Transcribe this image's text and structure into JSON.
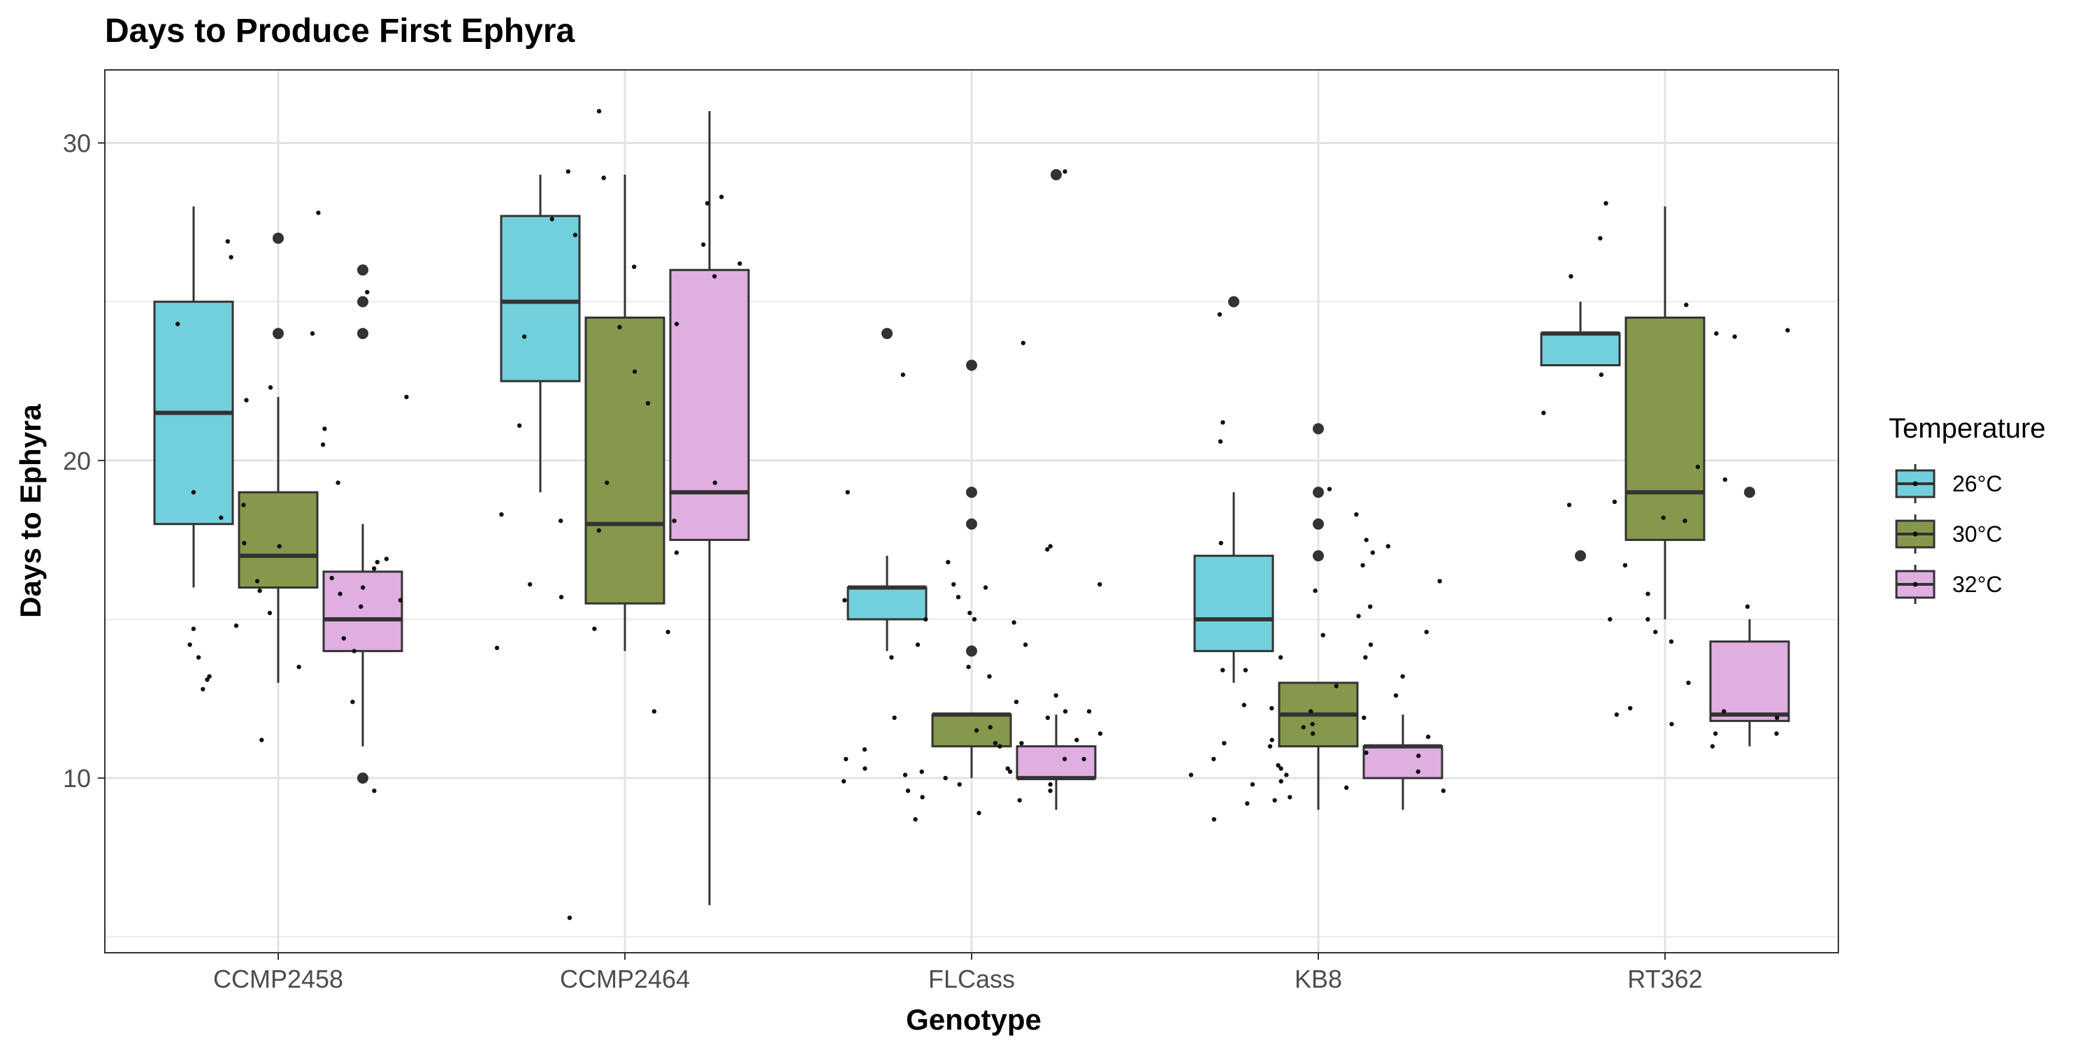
{
  "chart_data": {
    "type": "box",
    "title": "Days to Produce First Ephyra",
    "xlabel": "Genotype",
    "ylabel": "Days to Ephyra",
    "ylim": [
      4.5,
      32.3
    ],
    "y_ticks": [
      10,
      20,
      30
    ],
    "grid": true,
    "categories": [
      "CCMP2458",
      "CCMP2464",
      "FLCass",
      "KB8",
      "RT362"
    ],
    "legend": {
      "title": "Temperature",
      "position": "right"
    },
    "series": [
      {
        "name": "26°C",
        "color": "#72D0DC",
        "boxes": [
          {
            "q1": 18,
            "median": 21.5,
            "q3": 25,
            "whisker_low": 16,
            "whisker_high": 28,
            "outliers": []
          },
          {
            "q1": 22.5,
            "median": 25,
            "q3": 27.7,
            "whisker_low": 19,
            "whisker_high": 29,
            "outliers": []
          },
          {
            "q1": 15,
            "median": 16,
            "q3": 16,
            "whisker_low": 14,
            "whisker_high": 17,
            "outliers": [
              24
            ]
          },
          {
            "q1": 14,
            "median": 15,
            "q3": 17,
            "whisker_low": 13,
            "whisker_high": 19,
            "outliers": [
              25
            ]
          },
          {
            "q1": 23,
            "median": 24,
            "q3": 24,
            "whisker_low": 23,
            "whisker_high": 25,
            "outliers": [
              17
            ]
          }
        ]
      },
      {
        "name": "30°C",
        "color": "#85984C",
        "boxes": [
          {
            "q1": 16,
            "median": 17,
            "q3": 19,
            "whisker_low": 13,
            "whisker_high": 22,
            "outliers": [
              24,
              27
            ]
          },
          {
            "q1": 15.5,
            "median": 18,
            "q3": 24.5,
            "whisker_low": 14,
            "whisker_high": 29,
            "outliers": []
          },
          {
            "q1": 11,
            "median": 12,
            "q3": 12,
            "whisker_low": 10,
            "whisker_high": 12,
            "outliers": [
              14,
              18,
              19,
              23
            ]
          },
          {
            "q1": 11,
            "median": 12,
            "q3": 13,
            "whisker_low": 9,
            "whisker_high": 13,
            "outliers": [
              17,
              18,
              19,
              21
            ]
          },
          {
            "q1": 17.5,
            "median": 19,
            "q3": 24.5,
            "whisker_low": 15,
            "whisker_high": 28,
            "outliers": []
          }
        ]
      },
      {
        "name": "32°C",
        "color": "#E0AEE0",
        "boxes": [
          {
            "q1": 14,
            "median": 15,
            "q3": 16.5,
            "whisker_low": 11,
            "whisker_high": 18,
            "outliers": [
              10,
              24,
              25,
              26
            ]
          },
          {
            "q1": 17.5,
            "median": 19,
            "q3": 26,
            "whisker_low": 6,
            "whisker_high": 31,
            "outliers": []
          },
          {
            "q1": 10,
            "median": 10,
            "q3": 11,
            "whisker_low": 9,
            "whisker_high": 12,
            "outliers": [
              29
            ]
          },
          {
            "q1": 10,
            "median": 11,
            "q3": 11,
            "whisker_low": 9,
            "whisker_high": 12,
            "outliers": []
          },
          {
            "q1": 11.8,
            "median": 12,
            "q3": 14.3,
            "whisker_low": 11,
            "whisker_high": 15,
            "outliers": [
              19
            ]
          }
        ]
      }
    ],
    "jitter_points": [
      [
        0,
        27.8
      ],
      [
        0,
        26.9
      ],
      [
        0,
        24
      ],
      [
        0,
        22
      ],
      [
        0,
        21
      ],
      [
        0,
        20.5
      ],
      [
        0,
        19
      ],
      [
        0,
        16.8
      ],
      [
        0,
        16.3
      ],
      [
        0,
        16
      ],
      [
        0,
        15.8
      ],
      [
        0,
        14.8
      ],
      [
        0,
        14
      ],
      [
        0,
        13.8
      ],
      [
        0,
        13.5
      ],
      [
        0,
        13.2
      ],
      [
        0,
        12.8
      ],
      [
        0,
        12.4
      ],
      [
        0,
        9.6
      ],
      [
        0,
        25.3
      ],
      [
        0,
        24.3
      ],
      [
        0,
        22.3
      ],
      [
        0,
        19.3
      ],
      [
        0,
        18.6
      ],
      [
        0,
        18.2
      ],
      [
        0,
        17.4
      ],
      [
        0,
        16.9
      ],
      [
        0,
        16.6
      ],
      [
        0,
        16.2
      ],
      [
        0,
        15.9
      ],
      [
        0,
        15.4
      ],
      [
        0,
        14.7
      ],
      [
        0,
        14.2
      ],
      [
        0,
        26.4
      ],
      [
        0,
        21.9
      ],
      [
        0,
        17.3
      ],
      [
        0,
        15.6
      ],
      [
        0,
        15.2
      ],
      [
        0,
        14.4
      ],
      [
        0,
        13.1
      ],
      [
        0,
        11.2
      ],
      [
        1,
        28.3
      ],
      [
        1,
        28.1
      ],
      [
        1,
        27.1
      ],
      [
        1,
        26.1
      ],
      [
        1,
        25.8
      ],
      [
        1,
        24.3
      ],
      [
        1,
        23.9
      ],
      [
        1,
        21.8
      ],
      [
        1,
        21.1
      ],
      [
        1,
        18.1
      ],
      [
        1,
        17.8
      ],
      [
        1,
        17.1
      ],
      [
        1,
        15.7
      ],
      [
        1,
        14.7
      ],
      [
        1,
        31
      ],
      [
        1,
        28.9
      ],
      [
        1,
        26.2
      ],
      [
        1,
        19.3
      ],
      [
        1,
        18.3
      ],
      [
        1,
        18.1
      ],
      [
        1,
        16.1
      ],
      [
        1,
        14.6
      ],
      [
        1,
        14.1
      ],
      [
        1,
        5.6
      ],
      [
        1,
        29.1
      ],
      [
        1,
        28.9
      ],
      [
        1,
        27.6
      ],
      [
        1,
        26.8
      ],
      [
        1,
        24.2
      ],
      [
        1,
        22.8
      ],
      [
        1,
        19.3
      ],
      [
        1,
        12.1
      ],
      [
        2,
        23.7
      ],
      [
        2,
        19
      ],
      [
        2,
        16
      ],
      [
        2,
        15.7
      ],
      [
        2,
        15
      ],
      [
        2,
        14.9
      ],
      [
        2,
        14.2
      ],
      [
        2,
        13.5
      ],
      [
        2,
        12.1
      ],
      [
        2,
        11.9
      ],
      [
        2,
        11.5
      ],
      [
        2,
        11.2
      ],
      [
        2,
        11
      ],
      [
        2,
        10.6
      ],
      [
        2,
        10.3
      ],
      [
        2,
        10.2
      ],
      [
        2,
        10
      ],
      [
        2,
        9.8
      ],
      [
        2,
        9.3
      ],
      [
        2,
        8.7
      ],
      [
        2,
        17.2
      ],
      [
        2,
        16.1
      ],
      [
        2,
        15.2
      ],
      [
        2,
        13.8
      ],
      [
        2,
        13.2
      ],
      [
        2,
        12.4
      ],
      [
        2,
        12.1
      ],
      [
        2,
        11.6
      ],
      [
        2,
        11.1
      ],
      [
        2,
        10.9
      ],
      [
        2,
        10.6
      ],
      [
        2,
        10.3
      ],
      [
        2,
        10.1
      ],
      [
        2,
        9.8
      ],
      [
        2,
        9.6
      ],
      [
        2,
        9.4
      ],
      [
        2,
        29.1
      ],
      [
        2,
        22.7
      ],
      [
        2,
        17.3
      ],
      [
        2,
        16.8
      ],
      [
        2,
        16.1
      ],
      [
        2,
        15.6
      ],
      [
        2,
        15
      ],
      [
        2,
        14.2
      ],
      [
        2,
        12.6
      ],
      [
        2,
        11.9
      ],
      [
        2,
        11.4
      ],
      [
        2,
        11.1
      ],
      [
        2,
        10.6
      ],
      [
        2,
        10.2
      ],
      [
        2,
        9.9
      ],
      [
        2,
        9.6
      ],
      [
        2,
        8.9
      ],
      [
        3,
        18.3
      ],
      [
        3,
        17.5
      ],
      [
        3,
        16.7
      ],
      [
        3,
        15.9
      ],
      [
        3,
        15.1
      ],
      [
        3,
        14.6
      ],
      [
        3,
        13.8
      ],
      [
        3,
        13.4
      ],
      [
        3,
        12.9
      ],
      [
        3,
        12.3
      ],
      [
        3,
        11.9
      ],
      [
        3,
        11.6
      ],
      [
        3,
        11.2
      ],
      [
        3,
        10.8
      ],
      [
        3,
        10.3
      ],
      [
        3,
        10.1
      ],
      [
        3,
        9.8
      ],
      [
        3,
        9.3
      ],
      [
        3,
        24.6
      ],
      [
        3,
        19.1
      ],
      [
        3,
        16.2
      ],
      [
        3,
        15.4
      ],
      [
        3,
        14.5
      ],
      [
        3,
        13.2
      ],
      [
        3,
        12.6
      ],
      [
        3,
        12.2
      ],
      [
        3,
        11.7
      ],
      [
        3,
        11.4
      ],
      [
        3,
        11.1
      ],
      [
        3,
        10.7
      ],
      [
        3,
        10.4
      ],
      [
        3,
        10.1
      ],
      [
        3,
        9.7
      ],
      [
        3,
        9.4
      ],
      [
        3,
        8.7
      ],
      [
        3,
        21.2
      ],
      [
        3,
        20.6
      ],
      [
        3,
        17.4
      ],
      [
        3,
        17.3
      ],
      [
        3,
        17.1
      ],
      [
        3,
        14.2
      ],
      [
        3,
        13.8
      ],
      [
        3,
        13.4
      ],
      [
        3,
        12.1
      ],
      [
        3,
        11.3
      ],
      [
        3,
        11
      ],
      [
        3,
        10.6
      ],
      [
        3,
        10.2
      ],
      [
        3,
        9.9
      ],
      [
        3,
        9.6
      ],
      [
        3,
        9.2
      ],
      [
        4,
        27
      ],
      [
        4,
        24.9
      ],
      [
        4,
        24.1
      ],
      [
        4,
        22.7
      ],
      [
        4,
        19.4
      ],
      [
        4,
        18.7
      ],
      [
        4,
        15.4
      ],
      [
        4,
        15
      ],
      [
        4,
        14.3
      ],
      [
        4,
        12.1
      ],
      [
        4,
        11.7
      ],
      [
        4,
        11.4
      ],
      [
        4,
        11
      ],
      [
        4,
        28.1
      ],
      [
        4,
        25.8
      ],
      [
        4,
        23.9
      ],
      [
        4,
        21.5
      ],
      [
        4,
        18.6
      ],
      [
        4,
        18.2
      ],
      [
        4,
        14.6
      ],
      [
        4,
        12.2
      ],
      [
        4,
        24
      ],
      [
        4,
        19.8
      ],
      [
        4,
        18.1
      ],
      [
        4,
        16.7
      ],
      [
        4,
        15.8
      ],
      [
        4,
        15
      ],
      [
        4,
        13
      ],
      [
        4,
        12
      ],
      [
        4,
        11.9
      ],
      [
        4,
        11.4
      ]
    ]
  }
}
